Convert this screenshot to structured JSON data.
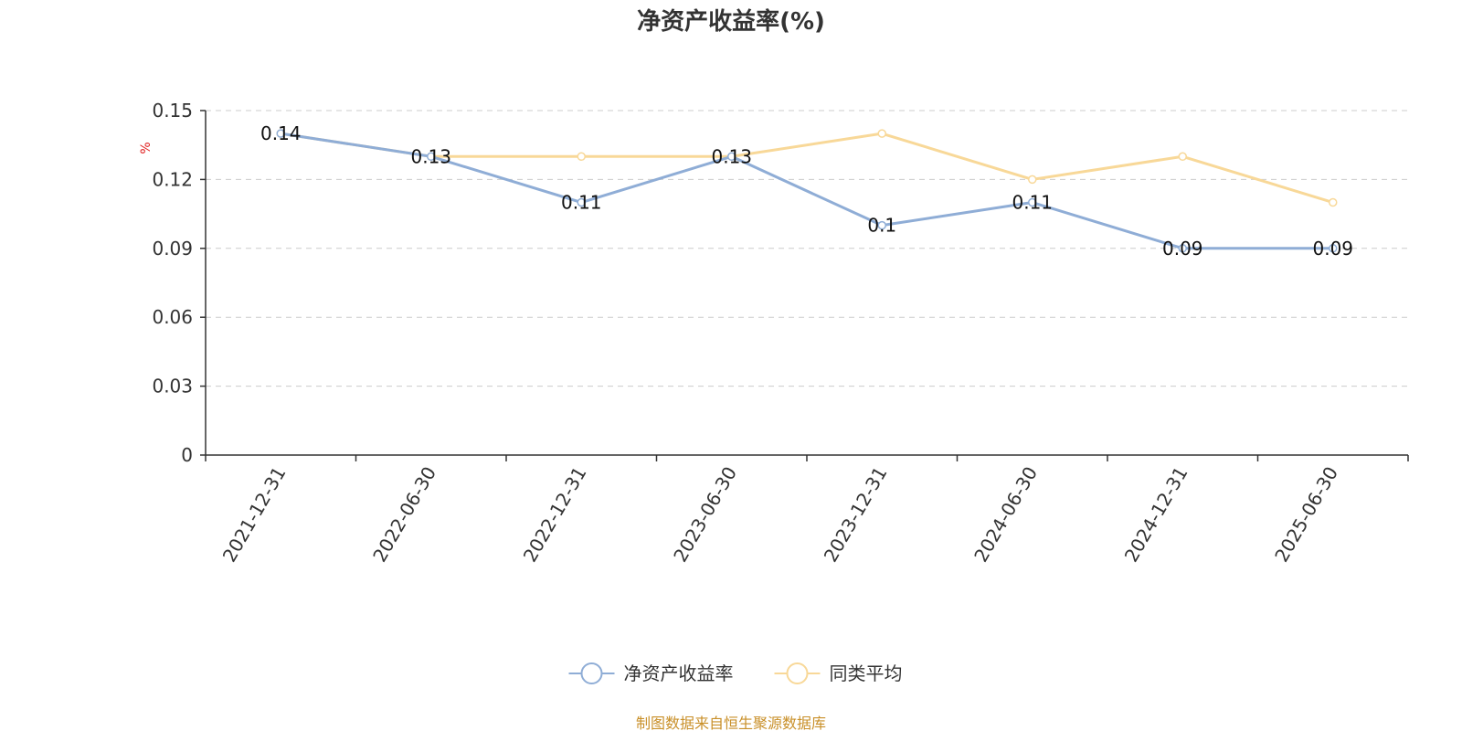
{
  "chart_data": {
    "type": "line",
    "title": "净资产收益率(%)",
    "ylabel": "%",
    "xlabel": "",
    "categories": [
      "2021-12-31",
      "2022-06-30",
      "2022-12-31",
      "2023-06-30",
      "2023-12-31",
      "2024-06-30",
      "2024-12-31",
      "2025-06-30"
    ],
    "ylim": [
      0,
      0.15
    ],
    "yticks": [
      "0",
      "0.03",
      "0.06",
      "0.09",
      "0.12",
      "0.15"
    ],
    "grid": true,
    "legend_position": "bottom-center",
    "series": [
      {
        "name": "净资产收益率",
        "color": "#8fadd6",
        "values": [
          0.14,
          0.13,
          0.11,
          0.13,
          0.1,
          0.11,
          0.09,
          0.09
        ],
        "data_labels": [
          "0.14",
          "0.13",
          "0.11",
          "0.13",
          "0.1",
          "0.11",
          "0.09",
          "0.09"
        ]
      },
      {
        "name": "同类平均",
        "color": "#f8d898",
        "values": [
          0.14,
          0.13,
          0.13,
          0.13,
          0.14,
          0.12,
          0.13,
          0.11
        ]
      }
    ]
  },
  "footer": {
    "source": "制图数据来自恒生聚源数据库"
  }
}
